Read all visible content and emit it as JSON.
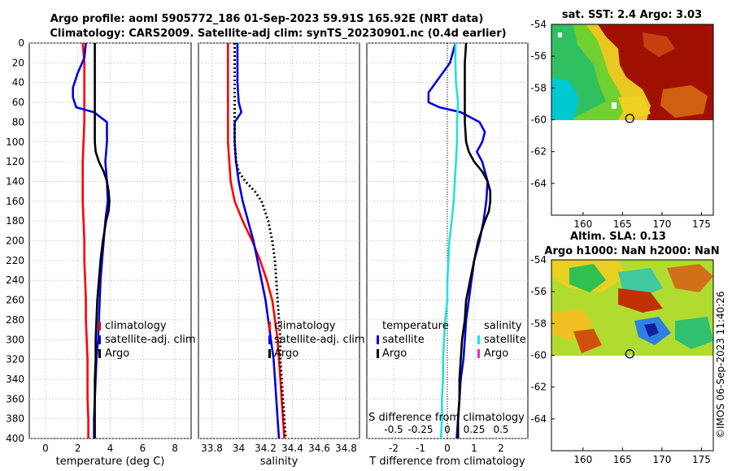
{
  "title": {
    "line1": "Argo profile: aoml 5905772_186 01-Sep-2023 59.91S 165.92E (NRT data)",
    "line2": "Climatology: CARS2009. Satellite-adj clim: synTS_20230901.nc (0.4d earlier)"
  },
  "timestamp": "©IMOS 06-Sep-2023 11:40:26",
  "depth_ticks": [
    "0",
    "20",
    "40",
    "60",
    "80",
    "100",
    "120",
    "140",
    "160",
    "180",
    "200",
    "220",
    "240",
    "260",
    "280",
    "300",
    "320",
    "340",
    "360",
    "380",
    "400"
  ],
  "chart_data": [
    {
      "id": "temperature",
      "type": "line",
      "xlabel": "temperature (deg C)",
      "xlim": [
        -1,
        9
      ],
      "ylim": [
        400,
        0
      ],
      "xticks": [
        "0",
        "2",
        "4",
        "6",
        "8"
      ],
      "xtick_values": [
        0,
        2,
        4,
        6,
        8
      ],
      "legend": [
        "climatology",
        "satellite-adj. clim",
        "Argo"
      ],
      "series": [
        {
          "name": "climatology",
          "color": "#ff0000",
          "style": "solid",
          "depth": [
            0,
            20,
            40,
            60,
            80,
            100,
            120,
            140,
            160,
            180,
            200,
            220,
            240,
            260,
            280,
            300,
            320,
            340,
            360,
            380,
            400
          ],
          "values": [
            2.3,
            2.4,
            2.4,
            2.4,
            2.4,
            2.35,
            2.3,
            2.3,
            2.3,
            2.35,
            2.4,
            2.4,
            2.45,
            2.5,
            2.5,
            2.55,
            2.6,
            2.6,
            2.6,
            2.65,
            2.65
          ]
        },
        {
          "name": "satellite-adj. clim",
          "color": "#0000dd",
          "style": "solid",
          "depth": [
            0,
            15,
            30,
            45,
            55,
            65,
            70,
            80,
            100,
            120,
            140,
            160,
            180,
            200,
            220,
            240,
            260,
            280,
            300,
            320,
            340,
            360,
            380,
            400
          ],
          "values": [
            2.5,
            2.4,
            2.0,
            1.7,
            1.7,
            1.9,
            3.0,
            3.8,
            3.8,
            3.7,
            3.8,
            3.85,
            3.7,
            3.6,
            3.5,
            3.4,
            3.35,
            3.3,
            3.25,
            3.15,
            3.1,
            3.05,
            3.0,
            3.0
          ]
        },
        {
          "name": "Argo",
          "color": "#000000",
          "style": "solid",
          "depth": [
            0,
            20,
            40,
            60,
            80,
            100,
            110,
            120,
            130,
            140,
            150,
            160,
            170,
            180,
            200,
            220,
            240,
            260,
            280,
            300,
            320,
            340,
            360,
            380,
            400
          ],
          "values": [
            3.05,
            3.05,
            3.05,
            3.05,
            3.05,
            3.05,
            3.1,
            3.3,
            3.6,
            3.8,
            3.9,
            3.95,
            3.9,
            3.75,
            3.55,
            3.4,
            3.3,
            3.2,
            3.15,
            3.1,
            3.1,
            3.05,
            3.05,
            3.05,
            3.05
          ]
        }
      ]
    },
    {
      "id": "salinity",
      "type": "line",
      "xlabel": "salinity",
      "xlim": [
        33.7,
        34.9
      ],
      "ylim": [
        400,
        0
      ],
      "xticks": [
        "33.8",
        "34",
        "34.2",
        "34.4",
        "34.6",
        "34.8"
      ],
      "xtick_values": [
        33.8,
        34.0,
        34.2,
        34.4,
        34.6,
        34.8
      ],
      "legend": [
        "climatology",
        "satellite-adj. clim",
        "Argo"
      ],
      "series": [
        {
          "name": "climatology",
          "color": "#ff0000",
          "style": "solid",
          "depth": [
            0,
            20,
            40,
            60,
            80,
            100,
            120,
            140,
            160,
            180,
            200,
            220,
            240,
            260,
            280,
            300,
            320,
            340,
            360,
            380,
            400
          ],
          "values": [
            33.92,
            33.92,
            33.92,
            33.92,
            33.92,
            33.92,
            33.93,
            33.94,
            33.97,
            34.03,
            34.1,
            34.16,
            34.21,
            34.25,
            34.27,
            34.29,
            34.3,
            34.31,
            34.32,
            34.33,
            34.34
          ]
        },
        {
          "name": "satellite-adj. clim",
          "color": "#0000dd",
          "style": "solid",
          "depth": [
            0,
            20,
            40,
            60,
            70,
            80,
            100,
            120,
            140,
            160,
            180,
            200,
            220,
            240,
            260,
            280,
            300,
            320,
            340,
            360,
            380,
            400
          ],
          "values": [
            33.99,
            33.99,
            33.99,
            34.0,
            34.02,
            33.97,
            33.97,
            33.98,
            34.0,
            34.03,
            34.07,
            34.11,
            34.14,
            34.17,
            34.2,
            34.22,
            34.24,
            34.26,
            34.27,
            34.28,
            34.29,
            34.3
          ]
        },
        {
          "name": "Argo",
          "color": "#000000",
          "style": "dotted",
          "depth": [
            0,
            20,
            40,
            60,
            80,
            100,
            120,
            130,
            140,
            150,
            160,
            180,
            200,
            220,
            240,
            260,
            280,
            300,
            320,
            340,
            360,
            380,
            400
          ],
          "values": [
            33.97,
            33.97,
            33.97,
            33.97,
            33.97,
            33.97,
            33.98,
            34.0,
            34.05,
            34.12,
            34.17,
            34.22,
            34.25,
            34.27,
            34.28,
            34.29,
            34.3,
            34.31,
            34.31,
            34.32,
            34.33,
            34.34,
            34.35
          ]
        }
      ]
    },
    {
      "id": "difference",
      "type": "line",
      "xlabel": "T difference from climatology",
      "s_xlabel": "S difference from climatology",
      "xlim": [
        -3,
        3
      ],
      "ylim": [
        400,
        0
      ],
      "xticks": [
        "-2",
        "-1",
        "0",
        "1",
        "2"
      ],
      "xtick_values": [
        -2,
        -1,
        0,
        1,
        2
      ],
      "s_xticks": [
        "-0.5",
        "-0.25",
        "0",
        "0.25",
        "0.5"
      ],
      "s_xtick_values": [
        -0.5,
        -0.25,
        0,
        0.25,
        0.5
      ],
      "legend_temperature_title": "temperature",
      "legend_salinity_title": "salinity",
      "legend_temperature": [
        "satellite",
        "Argo"
      ],
      "legend_salinity": [
        "satellite",
        "Argo"
      ],
      "series": [
        {
          "name": "T satellite",
          "color": "#0000dd",
          "style": "solid",
          "depth": [
            0,
            20,
            35,
            50,
            60,
            65,
            70,
            80,
            90,
            100,
            110,
            120,
            140,
            160,
            180,
            200,
            220,
            240,
            260,
            280,
            300,
            320,
            340,
            360,
            380,
            400
          ],
          "values": [
            0.3,
            0.1,
            -0.3,
            -0.7,
            -0.7,
            -0.3,
            0.5,
            1.2,
            1.4,
            1.3,
            1.1,
            1.3,
            1.5,
            1.45,
            1.35,
            1.2,
            1.0,
            0.9,
            0.8,
            0.7,
            0.65,
            0.6,
            0.5,
            0.45,
            0.4,
            0.35
          ]
        },
        {
          "name": "T Argo",
          "color": "#000000",
          "style": "solid",
          "depth": [
            0,
            20,
            40,
            60,
            80,
            100,
            110,
            120,
            130,
            140,
            150,
            160,
            170,
            180,
            200,
            220,
            240,
            260,
            280,
            300,
            320,
            340,
            360,
            380,
            400
          ],
          "values": [
            0.7,
            0.65,
            0.65,
            0.65,
            0.65,
            0.7,
            0.8,
            1.0,
            1.3,
            1.5,
            1.6,
            1.6,
            1.55,
            1.4,
            1.15,
            1.0,
            0.85,
            0.7,
            0.65,
            0.55,
            0.5,
            0.45,
            0.45,
            0.4,
            0.4
          ]
        },
        {
          "name": "S satellite",
          "color": "#22e0e0",
          "style": "solid",
          "depth": [
            0,
            20,
            40,
            60,
            80,
            100,
            120,
            140,
            160,
            180,
            200,
            220,
            240,
            260,
            280,
            300,
            320,
            340,
            360,
            380,
            400
          ],
          "values": [
            0.075,
            0.075,
            0.08,
            0.1,
            0.09,
            0.09,
            0.08,
            0.07,
            0.06,
            0.04,
            0.02,
            0.01,
            0.0,
            0.0,
            -0.02,
            -0.03,
            -0.04,
            -0.04,
            -0.05,
            -0.05,
            -0.06
          ]
        }
      ]
    }
  ],
  "maps": {
    "sst": {
      "title": "sat. SST: 2.4 Argo: 3.03",
      "yticks": [
        "-54",
        "-56",
        "-58",
        "-60",
        "-62",
        "-64"
      ],
      "ytick_values": [
        -54,
        -56,
        -58,
        -60,
        -62,
        -64
      ],
      "xticks": [
        "160",
        "165",
        "170",
        "175"
      ],
      "xtick_values": [
        160,
        165,
        170,
        175
      ],
      "xlim": [
        156,
        176.5
      ],
      "ylim": [
        -54,
        -66
      ],
      "marker": {
        "lon": 165.92,
        "lat": -59.91
      }
    },
    "sla": {
      "title1": "Altim. SLA: 0.13",
      "title2": "Argo h1000: NaN h2000: NaN",
      "yticks": [
        "-54",
        "-56",
        "-58",
        "-60",
        "-62",
        "-64"
      ],
      "ytick_values": [
        -54,
        -56,
        -58,
        -60,
        -62,
        -64
      ],
      "xticks": [
        "160",
        "165",
        "170",
        "175"
      ],
      "xtick_values": [
        160,
        165,
        170,
        175
      ],
      "xlim": [
        156,
        176.5
      ],
      "ylim": [
        -54,
        -66
      ],
      "marker": {
        "lon": 165.92,
        "lat": -59.91
      }
    }
  }
}
